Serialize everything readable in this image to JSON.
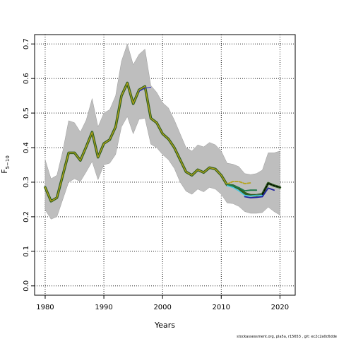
{
  "chart_data": {
    "type": "line",
    "xlabel": "Years",
    "ylabel": "F",
    "ylabel_sub": "5−10",
    "xlim": [
      1978.2,
      2022.6
    ],
    "ylim": [
      -0.027,
      0.727
    ],
    "xticks": [
      1980,
      1990,
      2000,
      2010,
      2020
    ],
    "yticks": [
      0.0,
      0.1,
      0.2,
      0.3,
      0.4,
      0.5,
      0.6,
      0.7
    ],
    "ytick_labels": [
      "0.0",
      "0.1",
      "0.2",
      "0.3",
      "0.4",
      "0.5",
      "0.6",
      "0.7"
    ],
    "grid": true,
    "band": {
      "color": "#bebebe",
      "x": [
        1980,
        1981,
        1982,
        1983,
        1984,
        1985,
        1986,
        1987,
        1988,
        1989,
        1990,
        1991,
        1992,
        1993,
        1994,
        1995,
        1996,
        1997,
        1998,
        1999,
        2000,
        2001,
        2002,
        2003,
        2004,
        2005,
        2006,
        2007,
        2008,
        2009,
        2010,
        2011,
        2012,
        2013,
        2014,
        2015,
        2016,
        2017,
        2018,
        2019,
        2020
      ],
      "upper": [
        0.365,
        0.31,
        0.32,
        0.39,
        0.478,
        0.472,
        0.445,
        0.48,
        0.542,
        0.46,
        0.5,
        0.51,
        0.55,
        0.65,
        0.7,
        0.64,
        0.67,
        0.685,
        0.58,
        0.56,
        0.53,
        0.515,
        0.48,
        0.44,
        0.4,
        0.39,
        0.408,
        0.402,
        0.415,
        0.408,
        0.39,
        0.355,
        0.352,
        0.345,
        0.325,
        0.322,
        0.325,
        0.335,
        0.385,
        0.385,
        0.39
      ],
      "lower": [
        0.22,
        0.193,
        0.2,
        0.25,
        0.3,
        0.31,
        0.302,
        0.33,
        0.36,
        0.307,
        0.35,
        0.355,
        0.38,
        0.46,
        0.49,
        0.44,
        0.482,
        0.485,
        0.41,
        0.4,
        0.38,
        0.365,
        0.34,
        0.3,
        0.274,
        0.265,
        0.28,
        0.272,
        0.285,
        0.28,
        0.265,
        0.24,
        0.238,
        0.23,
        0.215,
        0.21,
        0.21,
        0.212,
        0.228,
        0.215,
        0.205
      ]
    },
    "series": [
      {
        "color": "#2e5e1e",
        "width": 3.6,
        "dash": "",
        "x": [
          1980,
          1981,
          1982,
          1983,
          1984,
          1985,
          1986,
          1987,
          1988,
          1989,
          1990,
          1991,
          1992,
          1993,
          1994,
          1995,
          1996,
          1997,
          1998,
          1999,
          2000,
          2001,
          2002,
          2003,
          2004,
          2005,
          2006,
          2007,
          2008,
          2009,
          2010,
          2011,
          2012,
          2013,
          2014,
          2015,
          2016,
          2017,
          2018,
          2019,
          2020
        ],
        "values": [
          0.285,
          0.245,
          0.255,
          0.32,
          0.385,
          0.385,
          0.363,
          0.403,
          0.445,
          0.372,
          0.412,
          0.423,
          0.46,
          0.55,
          0.587,
          0.527,
          0.567,
          0.577,
          0.485,
          0.472,
          0.44,
          0.425,
          0.4,
          0.365,
          0.33,
          0.32,
          0.336,
          0.328,
          0.342,
          0.338,
          0.32,
          0.292,
          0.29,
          0.282,
          0.268,
          0.262,
          0.262,
          0.265,
          0.297,
          0.29,
          0.285
        ]
      },
      {
        "color": "#b5a31a",
        "width": 1.3,
        "dash": "",
        "x": [
          1980,
          1981,
          1982,
          1983,
          1984,
          1985,
          1986,
          1987,
          1988,
          1989,
          1990,
          1991,
          1992,
          1993,
          1994,
          1995,
          1996,
          1997,
          1998,
          1999,
          2000,
          2001,
          2002,
          2003,
          2004,
          2005,
          2006,
          2007,
          2008,
          2009,
          2010,
          2011
        ],
        "values": [
          0.285,
          0.245,
          0.255,
          0.32,
          0.385,
          0.385,
          0.363,
          0.403,
          0.445,
          0.372,
          0.412,
          0.423,
          0.46,
          0.55,
          0.587,
          0.527,
          0.567,
          0.577,
          0.485,
          0.472,
          0.44,
          0.425,
          0.4,
          0.365,
          0.33,
          0.32,
          0.336,
          0.328,
          0.342,
          0.338,
          0.32,
          0.292
        ]
      },
      {
        "color": "#2828c8",
        "width": 1.1,
        "dash": "",
        "x": [
          1996,
          1997,
          1998
        ],
        "values": [
          0.563,
          0.572,
          0.575
        ]
      },
      {
        "color": "#b5a31a",
        "width": 1.8,
        "dash": "4,2",
        "x": [
          2011,
          2012,
          2013,
          2014,
          2015
        ],
        "values": [
          0.295,
          0.302,
          0.302,
          0.296,
          0.298
        ]
      },
      {
        "color": "#1e7a4a",
        "width": 2.0,
        "dash": "",
        "x": [
          2011,
          2012,
          2013,
          2014,
          2015,
          2016
        ],
        "values": [
          0.293,
          0.29,
          0.284,
          0.275,
          0.277,
          0.277
        ]
      },
      {
        "color": "#46c8e0",
        "width": 1.6,
        "dash": "",
        "x": [
          2011,
          2012,
          2013,
          2014,
          2015,
          2016,
          2017
        ],
        "values": [
          0.29,
          0.285,
          0.275,
          0.262,
          0.26,
          0.262,
          0.262
        ]
      },
      {
        "color": "#2020a0",
        "width": 1.8,
        "dash": "",
        "x": [
          2014,
          2015,
          2016,
          2017,
          2018,
          2019
        ],
        "values": [
          0.258,
          0.255,
          0.256,
          0.258,
          0.283,
          0.277
        ]
      },
      {
        "color": "#000000",
        "width": 1.4,
        "dash": "3,2",
        "x": [
          2017,
          2018,
          2019,
          2020
        ],
        "values": [
          0.265,
          0.297,
          0.29,
          0.285
        ]
      }
    ]
  },
  "footer": "stockassessment.org, pla5a, r15653 , git: ec2c2a0c6dde"
}
